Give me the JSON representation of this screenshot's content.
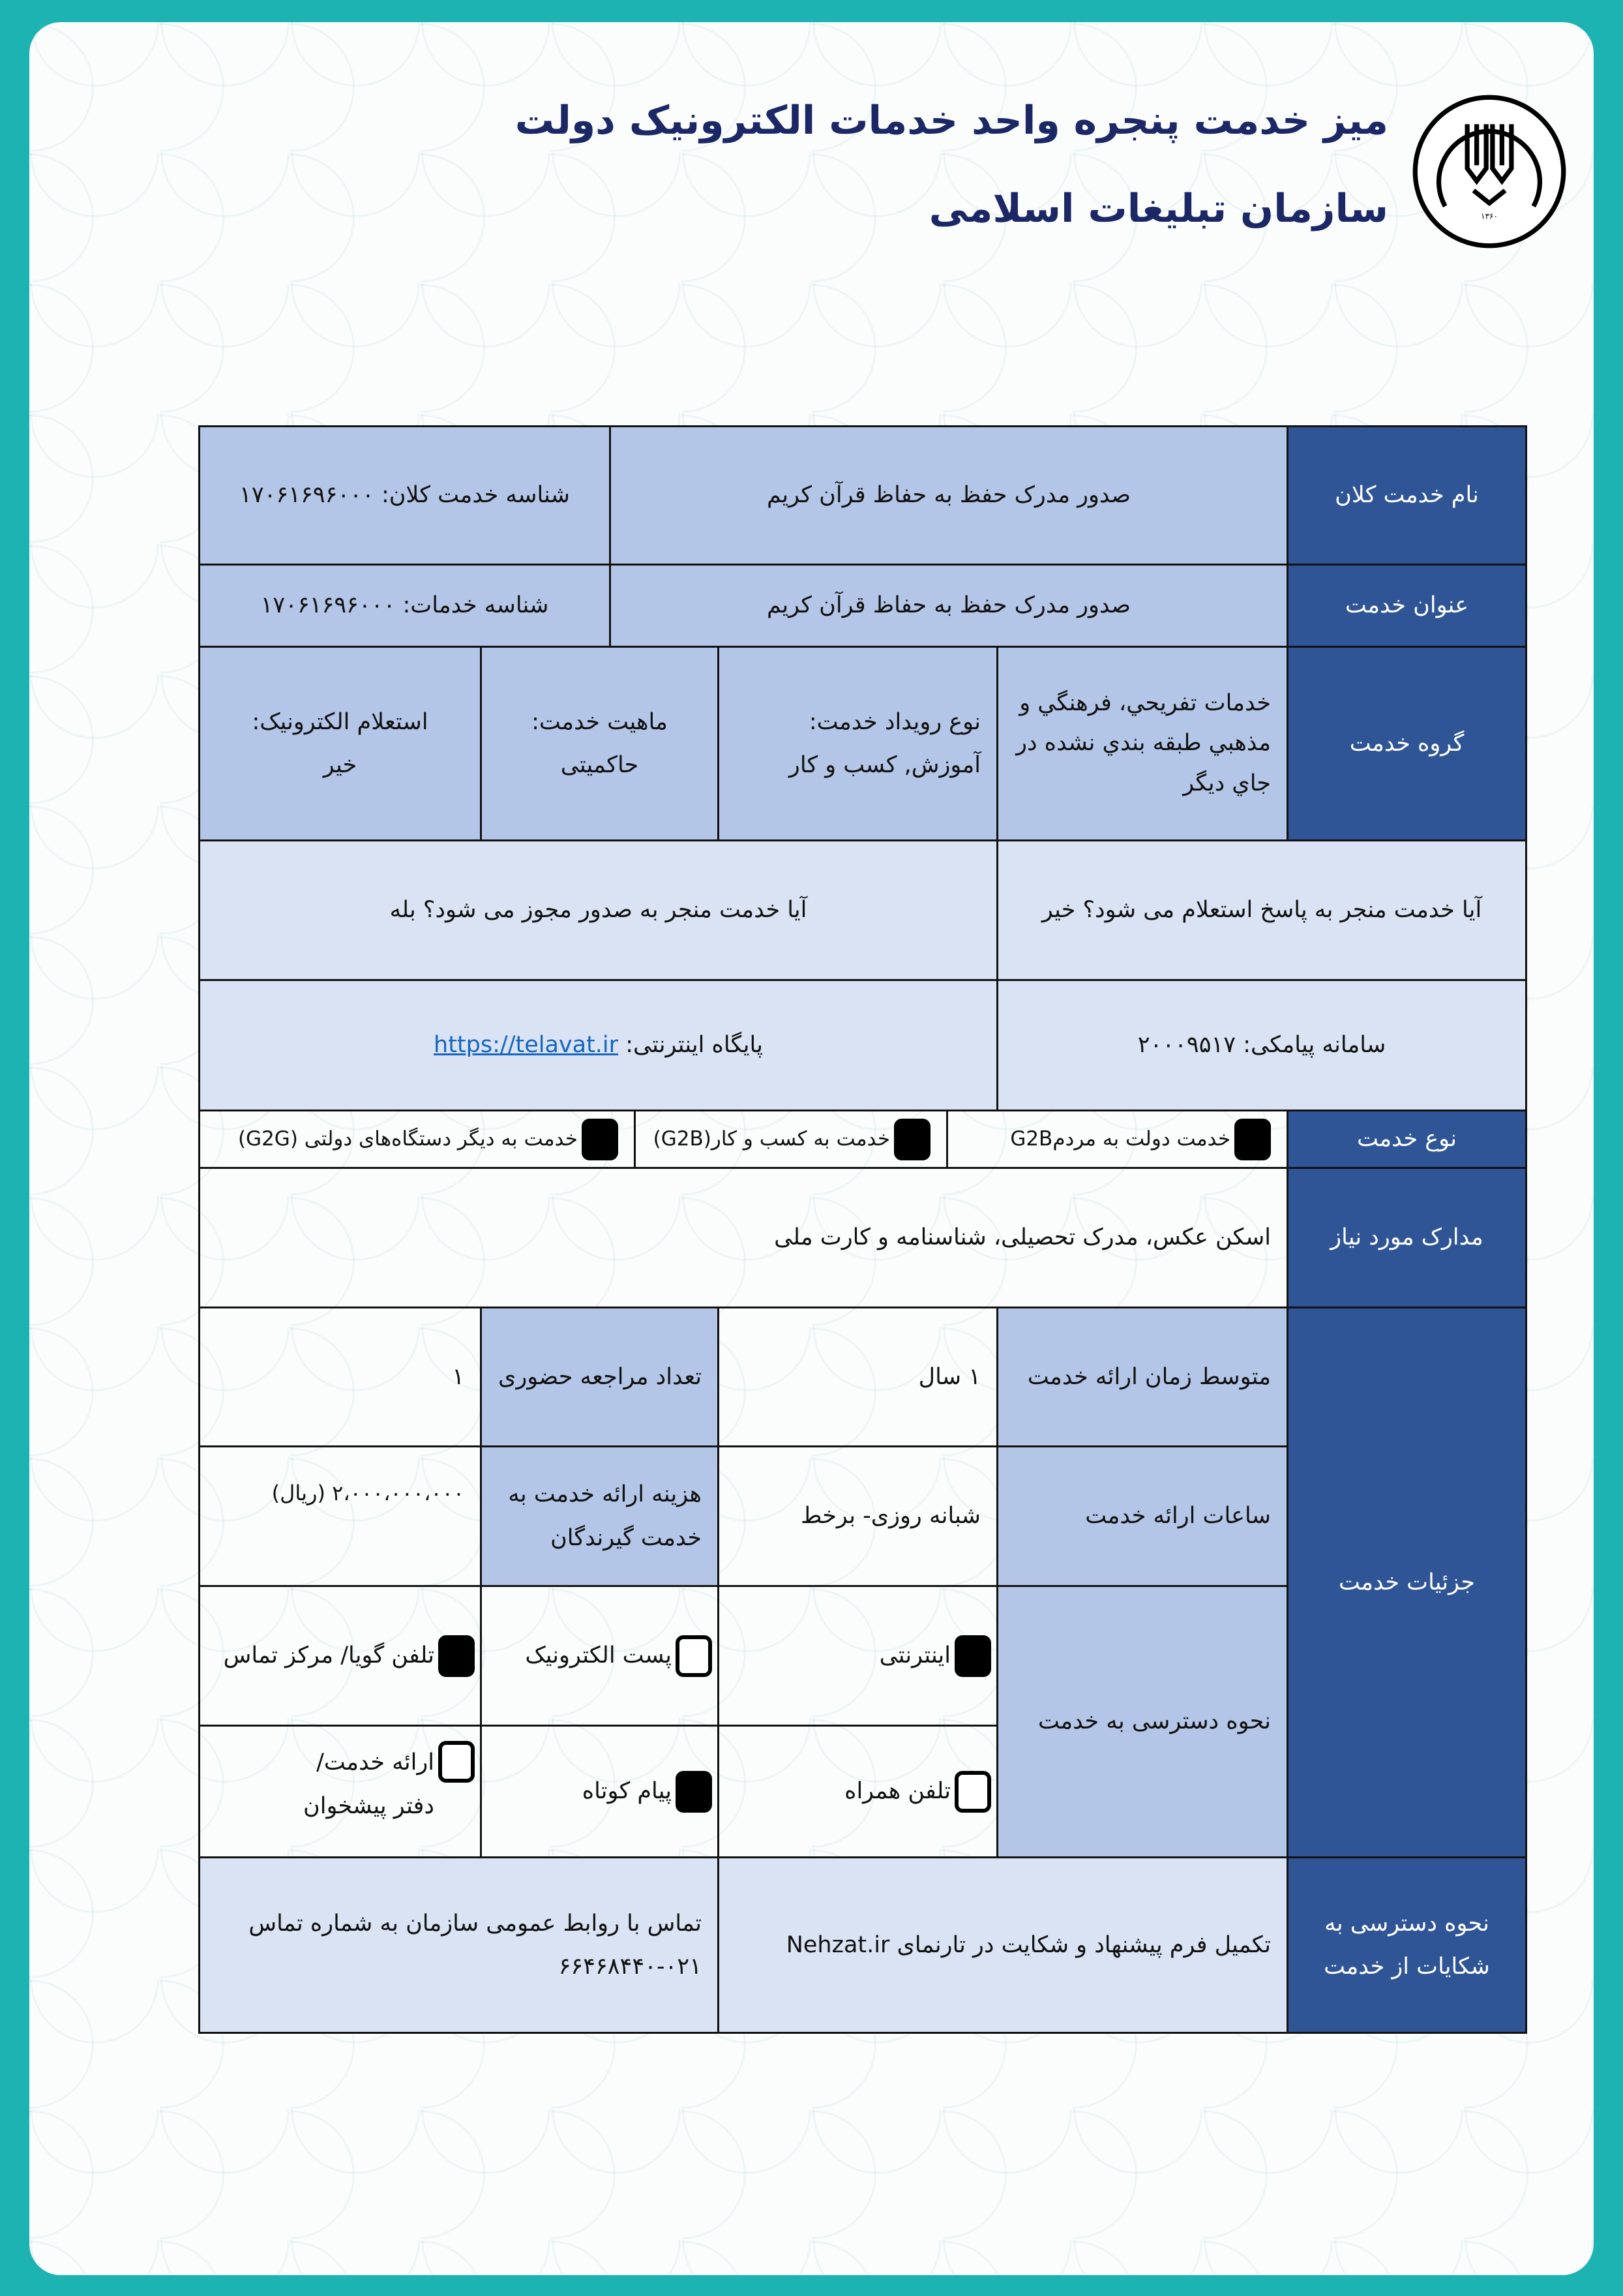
{
  "header": {
    "title": "میز خدمت پنجره واحد خدمات الکترونیک دولت",
    "subtitle": "سازمان تبلیغات اسلامی",
    "logo_text": "سازمان تبلیغات اسلامی ۱۳۶۰"
  },
  "rows": {
    "macro_service": {
      "label": "نام خدمت کلان",
      "value": "صدور مدرک حفظ به حفاظ قرآن کریم",
      "id": "شناسه خدمت کلان: ۱۷۰۶۱۶۹۶۰۰۰"
    },
    "service_title": {
      "label": "عنوان خدمت",
      "value": "صدور مدرک حفظ به حفاظ قرآن کریم",
      "id": "شناسه خدمات: ۱۷۰۶۱۶۹۶۰۰۰"
    },
    "service_group": {
      "label": "گروه خدمت",
      "group": "خدمات تفريحي، فرهنگي و مذهبي طبقه بندي نشده در جاي ديگر",
      "event_label": "نوع رویداد خدمت:",
      "event_value": "آموزش, کسب و کار",
      "nature_label": "ماهیت خدمت:",
      "nature_value": "حاکمیتی",
      "inquiry_label": "استعلام الکترونیک:",
      "inquiry_value": "خیر"
    },
    "inquiry_q": "آیا خدمت منجر به پاسخ استعلام می شود؟ خیر",
    "license_q": "آیا خدمت منجر به صدور مجوز می شود؟ بله",
    "sms": "سامانه پیامکی: ۲۰۰۰۹۵۱۷",
    "website_label": "پایگاه اینترنتی:",
    "website_url": "https://telavat.ir",
    "service_type": {
      "label": "نوع خدمت",
      "options": [
        {
          "label": "خدمت دولت به مردمG2B",
          "checked": true
        },
        {
          "label": "خدمت به کسب و کار(G2B)",
          "checked": true
        },
        {
          "label": "خدمت به دیگر دستگاه‌های دولتی (G2G)",
          "checked": true
        }
      ]
    },
    "documents": {
      "label": "مدارک مورد نیاز",
      "value": "اسکن عکس، مدرک تحصیلی، شناسنامه و کارت ملی"
    },
    "details": {
      "label": "جزئیات خدمت",
      "avg_time_label": "متوسط زمان ارائه خدمت",
      "avg_time_value": "۱ سال",
      "visits_label": "تعداد مراجعه حضوری",
      "visits_value": "۱",
      "hours_label": "ساعات ارائه خدمت",
      "hours_value": "شبانه روزی- برخط",
      "cost_label": "هزینه ارائه خدمت به خدمت گیرندگان",
      "cost_value": "۲،۰۰۰،۰۰۰،۰۰۰ (ریال)",
      "access_label": "نحوه دسترسی به خدمت",
      "access": [
        {
          "label": "اینترنتی",
          "checked": true
        },
        {
          "label": "پست الکترونیک",
          "checked": false
        },
        {
          "label": "تلفن گویا/ مرکز تماس",
          "checked": true
        },
        {
          "label": "تلفن همراه",
          "checked": false
        },
        {
          "label": "پیام کوتاه",
          "checked": true
        },
        {
          "label": "ارائه خدمت/ دفتر پیشخوان",
          "checked": false
        }
      ]
    },
    "complaints": {
      "label": "نحوه دسترسی به شکایات از خدمت",
      "form": "تکمیل فرم پیشنهاد و شکایت در تارنمای Nehzat.ir",
      "phone": "تماس با روابط عمومی سازمان به شماره تماس ۰۲۱-۶۶۴۶۸۴۴۰"
    }
  },
  "colors": {
    "header": "#2f5597",
    "light": "#b4c6e7",
    "lighter": "#dae3f3",
    "frame": "#1db3b3",
    "title": "#1c2766"
  }
}
